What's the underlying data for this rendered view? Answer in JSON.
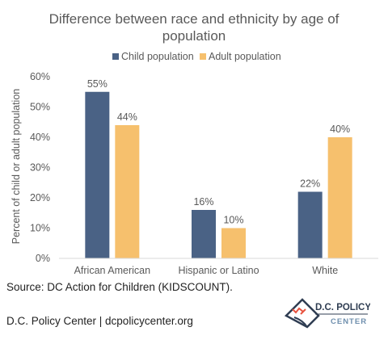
{
  "chart_data": {
    "type": "bar",
    "title": "Difference between race and ethnicity by age of population",
    "title_lines": [
      "Difference between race and ethnicity by age of",
      "population"
    ],
    "ylabel": "Percent of child or adult population",
    "xlabel": "",
    "categories": [
      "African American",
      "Hispanic or Latino",
      "White"
    ],
    "series": [
      {
        "name": "Child population",
        "values": [
          55,
          16,
          22
        ],
        "color": "#4a6285"
      },
      {
        "name": "Adult population",
        "values": [
          44,
          10,
          40
        ],
        "color": "#f6c06d"
      }
    ],
    "ylim": [
      0,
      60
    ],
    "yticks": [
      0,
      10,
      20,
      30,
      40,
      50,
      60
    ],
    "value_format": "percent",
    "legend_position": "top",
    "grid": false
  },
  "footer": {
    "source": "Source: DC Action for Children (KIDSCOUNT).",
    "credit": "D.C. Policy Center | dcpolicycenter.org"
  },
  "logo": {
    "line1": "D.C. POLICY",
    "line2": "CENTER"
  }
}
